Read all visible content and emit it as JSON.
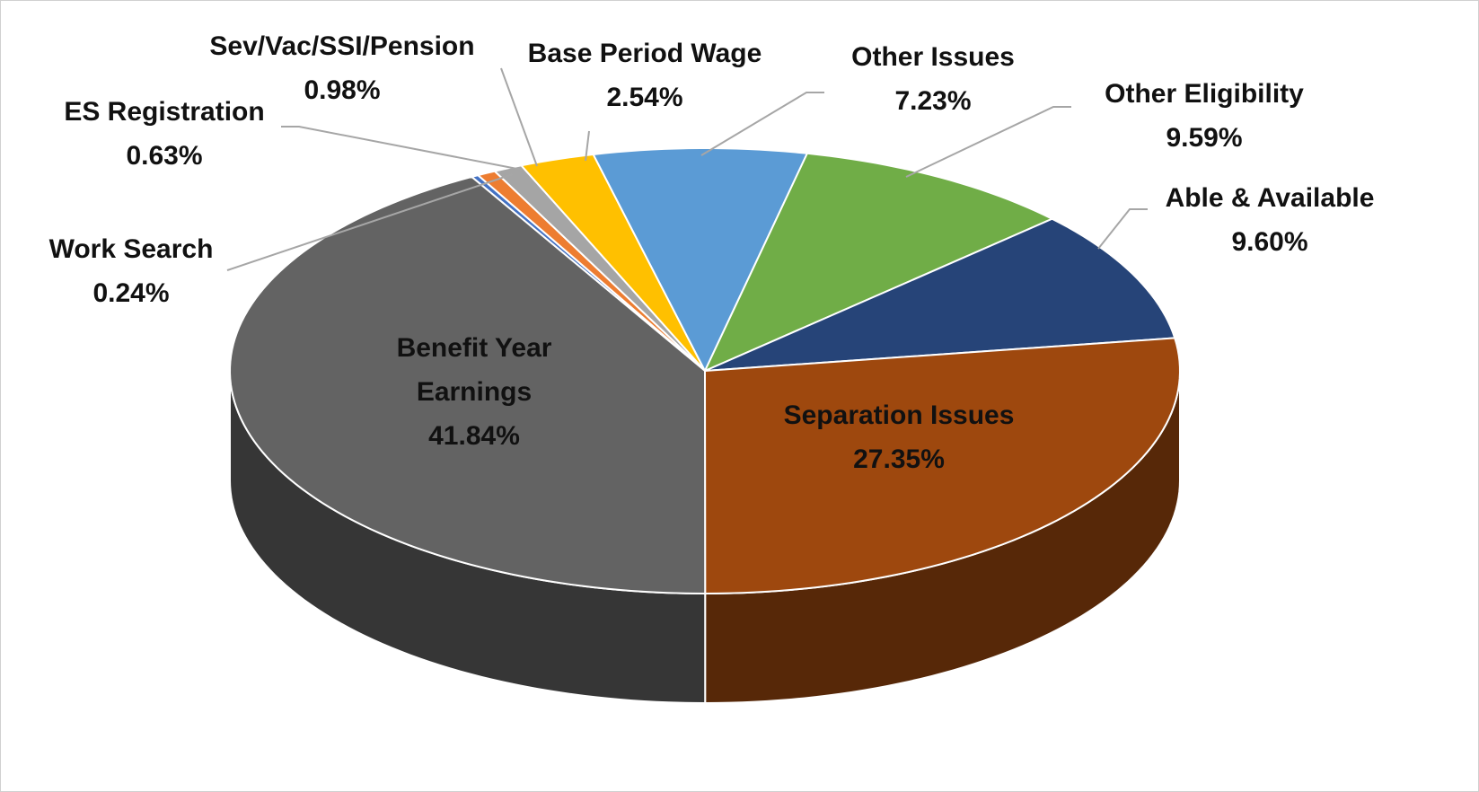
{
  "chart_data": {
    "type": "pie3d",
    "categories": [
      "Work Search",
      "ES Registration",
      "Sev/Vac/SSI/Pension",
      "Base Period Wage",
      "Other Issues",
      "Other Eligibility",
      "Able & Available",
      "Separation Issues",
      "Benefit Year Earnings"
    ],
    "values": [
      0.24,
      0.63,
      0.98,
      2.54,
      7.23,
      9.59,
      9.6,
      27.35,
      41.84
    ],
    "value_labels": [
      "0.24%",
      "0.63%",
      "0.98%",
      "2.54%",
      "7.23%",
      "9.59%",
      "9.60%",
      "27.35%",
      "41.84%"
    ],
    "colors": [
      "#4472c4",
      "#ed7d31",
      "#a5a5a5",
      "#ffc000",
      "#5b9bd5",
      "#70ad47",
      "#264478",
      "#9e480e",
      "#636363"
    ]
  }
}
